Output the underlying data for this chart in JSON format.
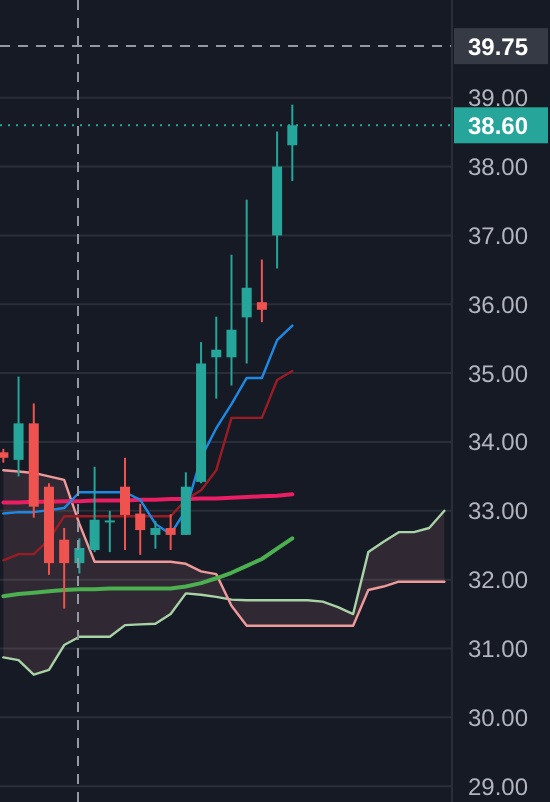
{
  "chart_data": {
    "type": "candlestick",
    "categories": [
      null,
      null,
      null,
      null,
      null,
      null,
      null,
      null,
      null,
      null,
      null,
      null,
      null,
      null,
      null,
      null,
      null,
      null,
      null,
      null,
      null,
      null,
      null,
      null,
      null,
      null,
      null,
      null,
      null,
      null
    ],
    "ohlc": [
      [
        33.85,
        33.9,
        33.7,
        33.77
      ],
      [
        33.74,
        34.95,
        33.5,
        34.27
      ],
      [
        34.27,
        34.56,
        32.9,
        33.06
      ],
      [
        33.35,
        33.4,
        32.07,
        32.24
      ],
      [
        32.58,
        32.75,
        31.58,
        32.24
      ],
      [
        32.24,
        32.6,
        32.09,
        32.46
      ],
      [
        32.43,
        33.64,
        32.4,
        32.87
      ],
      [
        32.84,
        33.0,
        32.4,
        32.86
      ],
      [
        33.35,
        33.77,
        32.43,
        32.94
      ],
      [
        32.96,
        33.1,
        32.36,
        32.72
      ],
      [
        32.65,
        32.85,
        32.45,
        32.75
      ],
      [
        32.75,
        32.95,
        32.43,
        32.65
      ],
      [
        32.65,
        33.56,
        32.65,
        33.35
      ],
      [
        33.42,
        35.45,
        33.4,
        35.14
      ],
      [
        35.23,
        35.82,
        34.63,
        35.34
      ],
      [
        35.23,
        36.72,
        34.82,
        35.63
      ],
      [
        35.81,
        37.52,
        35.14,
        36.24
      ],
      [
        36.03,
        36.65,
        35.74,
        35.92
      ],
      [
        37.0,
        38.51,
        36.52,
        38.0
      ],
      [
        38.31,
        38.9,
        37.79,
        38.6
      ],
      null,
      null,
      null,
      null,
      null,
      null,
      null,
      null,
      null,
      null
    ],
    "colors": [
      "#ef5350",
      "#26a69a",
      "#ef5350",
      "#ef5350",
      "#ef5350",
      "#26a69a",
      "#26a69a",
      "#26a69a",
      "#ef5350",
      "#ef5350",
      "#26a69a",
      "#ef5350",
      "#26a69a",
      "#26a69a",
      "#26a69a",
      "#26a69a",
      "#26a69a",
      "#ef5350",
      "#26a69a",
      "#26a69a",
      null,
      null,
      null,
      null,
      null,
      null,
      null,
      null,
      null,
      null
    ],
    "series": [
      {
        "type": "line",
        "color": "#a5d6a7",
        "values": [
          30.87,
          30.83,
          30.62,
          30.69,
          31.05,
          31.17,
          31.17,
          31.17,
          31.34,
          31.35,
          31.36,
          31.5,
          31.8,
          31.78,
          31.75,
          31.71,
          31.7,
          31.7,
          31.7,
          31.7,
          31.7,
          31.68,
          31.6,
          31.5,
          32.4,
          32.55,
          32.69,
          32.69,
          32.75,
          33.0
        ]
      },
      {
        "type": "line",
        "color": "#ef9a9a",
        "values": [
          33.59,
          33.57,
          33.55,
          33.5,
          33.45,
          32.81,
          32.26,
          32.26,
          32.26,
          32.26,
          32.26,
          32.26,
          32.23,
          32.12,
          32.08,
          31.62,
          31.33,
          31.33,
          31.33,
          31.33,
          31.33,
          31.33,
          31.33,
          31.33,
          31.85,
          31.9,
          31.97,
          31.97,
          31.97,
          31.97
        ],
        "lower": [
          33.59,
          33.57,
          33.55,
          33.5,
          33.45,
          32.81,
          32.26,
          32.26,
          32.26,
          32.26,
          32.26,
          32.26,
          32.23,
          32.12,
          32.08,
          31.62,
          31.33,
          31.33,
          31.33,
          31.33,
          31.33,
          31.33,
          31.33,
          31.33,
          31.85,
          31.9,
          31.97,
          31.97,
          31.97,
          31.97
        ],
        "upper": [
          30.87,
          30.83,
          30.62,
          30.69,
          31.05,
          31.17,
          31.17,
          31.17,
          31.34,
          31.35,
          31.36,
          31.5,
          31.8,
          31.78,
          31.75,
          31.71,
          31.7,
          31.7,
          31.7,
          31.7,
          31.7,
          31.68,
          31.6,
          31.5,
          32.4,
          32.55,
          32.69,
          32.69,
          32.75,
          33.0
        ]
      },
      {
        "type": "line",
        "color": "#4caf50",
        "values": [
          31.76,
          31.79,
          31.81,
          31.83,
          31.85,
          31.86,
          31.86,
          31.87,
          31.87,
          31.87,
          31.87,
          31.87,
          31.9,
          31.95,
          32.02,
          32.1,
          32.2,
          32.3,
          32.45,
          32.6,
          null,
          null,
          null,
          null,
          null,
          null,
          null,
          null,
          null,
          null
        ]
      },
      {
        "type": "line",
        "color": "#e91e63",
        "values": [
          33.12,
          33.12,
          33.13,
          33.13,
          33.14,
          33.14,
          33.15,
          33.15,
          33.15,
          33.16,
          33.16,
          33.17,
          33.17,
          33.18,
          33.18,
          33.19,
          33.2,
          33.21,
          33.22,
          33.24,
          null,
          null,
          null,
          null,
          null,
          null,
          null,
          null,
          null,
          null
        ]
      },
      {
        "type": "line",
        "color": "#9b1c24",
        "values": [
          32.28,
          32.37,
          32.37,
          32.58,
          32.92,
          32.92,
          32.92,
          32.92,
          32.92,
          32.92,
          32.92,
          32.92,
          33.16,
          33.3,
          33.59,
          34.35,
          34.35,
          34.35,
          34.9,
          35.03,
          null,
          null,
          null,
          null,
          null,
          null,
          null,
          null,
          null,
          null
        ]
      },
      {
        "type": "line",
        "color": "#1e88e5",
        "values": [
          32.96,
          32.98,
          32.98,
          33.01,
          33.04,
          33.27,
          33.27,
          33.27,
          33.27,
          33.16,
          32.81,
          32.66,
          33.01,
          33.77,
          34.2,
          34.55,
          34.93,
          34.93,
          35.48,
          35.69,
          null,
          null,
          null,
          null,
          null,
          null,
          null,
          null,
          null,
          null
        ]
      }
    ],
    "ylim": [
      28.77,
      40.42
    ],
    "yticks": [
      {
        "value": 29,
        "label": "29.00"
      },
      {
        "value": 30,
        "label": "30.00"
      },
      {
        "value": 31,
        "label": "31.00"
      },
      {
        "value": 32,
        "label": "32.00"
      },
      {
        "value": 33,
        "label": "33.00"
      },
      {
        "value": 34,
        "label": "34.00"
      },
      {
        "value": 35,
        "label": "35.00"
      },
      {
        "value": 36,
        "label": "36.00"
      },
      {
        "value": 37,
        "label": "37.00"
      },
      {
        "value": 38,
        "label": "38.00"
      },
      {
        "value": 39,
        "label": "39.00"
      }
    ],
    "grid": "y",
    "tick_labels": "y",
    "ref_lines": [
      {
        "axis": "y",
        "value": 39.75,
        "label": "39.75",
        "color": "#9598a1",
        "line_style": "dashed"
      },
      {
        "axis": "y",
        "value": 38.6,
        "label": "38.60",
        "color": "#26a69a",
        "line_style": "dotted"
      }
    ]
  }
}
